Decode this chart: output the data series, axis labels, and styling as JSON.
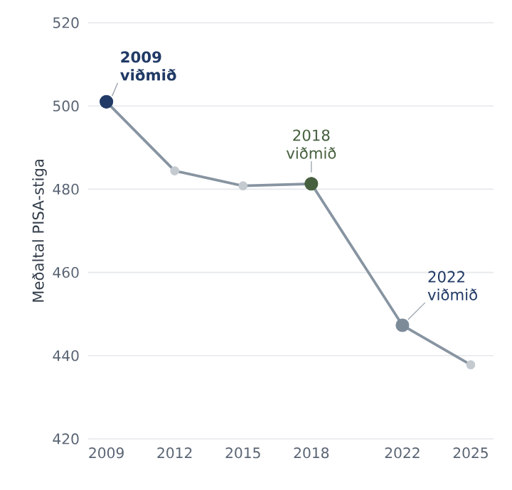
{
  "chart_data": {
    "type": "line",
    "ylabel": "Meðaltal PISA-stiga",
    "x": [
      2009,
      2012,
      2015,
      2018,
      2022,
      2025
    ],
    "series": [
      {
        "color": "#8794a1",
        "values": [
          501,
          484.4,
          480.8,
          481.3,
          447.3,
          437.8
        ],
        "colors": [
          "#213a66",
          "#c5cad1",
          "#c5cad1",
          "#46603f",
          "#7d8b99",
          "#c5cad1"
        ]
      }
    ],
    "xlim": [
      2008.2,
      2026
    ],
    "ylim": [
      420,
      520
    ],
    "xticks": [
      2009,
      2012,
      2015,
      2018,
      2022,
      2025
    ],
    "yticks": [
      420,
      440,
      460,
      480,
      500,
      520
    ],
    "grid": "y",
    "marker": "circle",
    "line_style": "solid",
    "annotations": [
      {
        "text": "2009 viðmið",
        "x": 2009,
        "y": 501
      },
      {
        "text": "2018 viðmið",
        "x": 2018,
        "y": 481.3
      },
      {
        "text": "2022 viðmið",
        "x": 2022,
        "y": 447.3
      }
    ]
  }
}
